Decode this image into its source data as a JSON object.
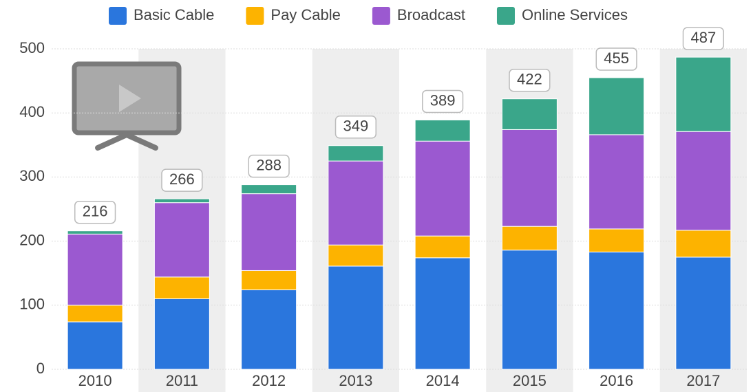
{
  "chart_data": {
    "type": "stacked_bar",
    "categories": [
      "2010",
      "2011",
      "2012",
      "2013",
      "2014",
      "2015",
      "2016",
      "2017"
    ],
    "series": [
      {
        "name": "Basic Cable",
        "color": "#2a76dd",
        "values": [
          74,
          110,
          124,
          161,
          174,
          186,
          183,
          175
        ]
      },
      {
        "name": "Pay Cable",
        "color": "#fdb300",
        "values": [
          26,
          34,
          30,
          33,
          34,
          37,
          36,
          42
        ]
      },
      {
        "name": "Broadcast",
        "color": "#9b59d0",
        "values": [
          111,
          116,
          120,
          131,
          148,
          151,
          147,
          154
        ]
      },
      {
        "name": "Online Services",
        "color": "#3aa68a",
        "values": [
          5,
          6,
          14,
          24,
          33,
          48,
          89,
          116
        ]
      }
    ],
    "totals": [
      216,
      266,
      288,
      349,
      389,
      422,
      455,
      487
    ],
    "ylim": [
      0,
      500
    ],
    "yticks": [
      0,
      100,
      200,
      300,
      400,
      500
    ],
    "grid": true,
    "legend": "top"
  }
}
